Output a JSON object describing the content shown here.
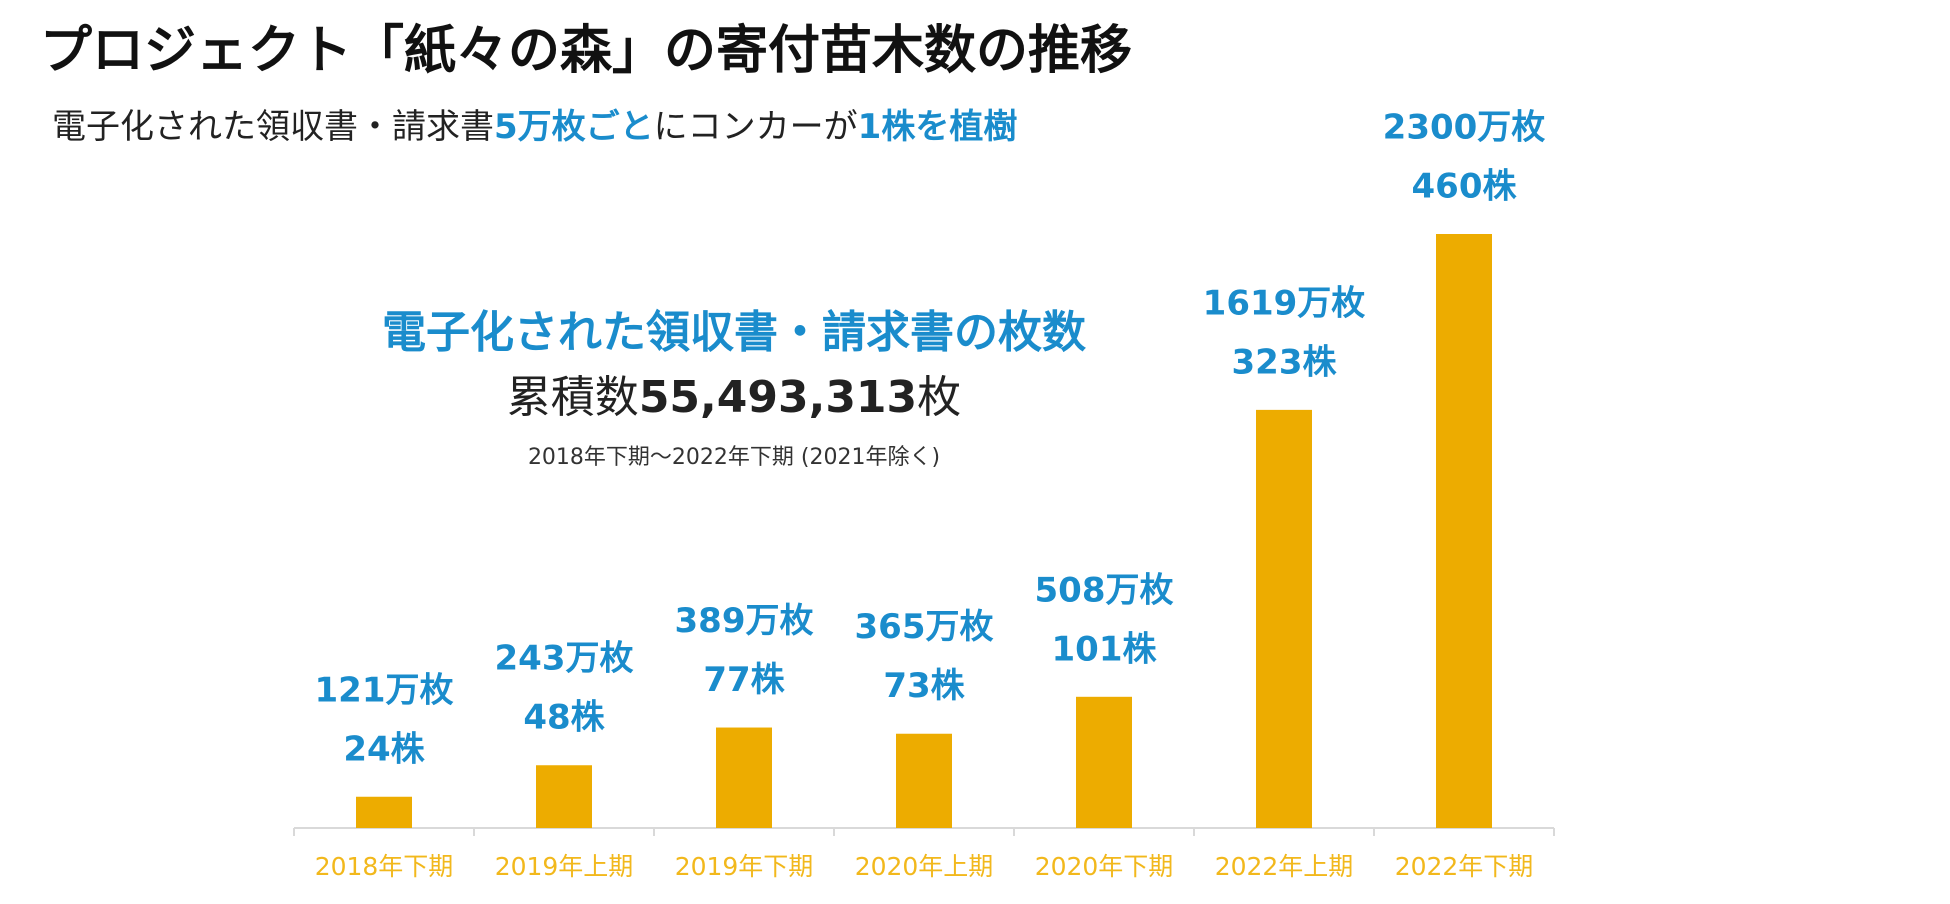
{
  "chart_data": {
    "type": "bar",
    "title": "プロジェクト「紙々の森」の寄付苗木数の推移",
    "subtitle_parts": [
      "電子化された領収書・請求書",
      "5万枚ごと",
      "にコンカーが",
      "1株を植樹"
    ],
    "annotation": {
      "heading": "電子化された領収書・請求書の枚数",
      "total_prefix": "累積数",
      "total": "55,493,313",
      "total_suffix": "枚",
      "note": "2018年下期～2022年下期 (2021年除く)"
    },
    "categories": [
      "2018年下期",
      "2019年上期",
      "2019年下期",
      "2020年上期",
      "2020年下期",
      "2022年上期",
      "2022年下期"
    ],
    "values": [
      121,
      243,
      389,
      365,
      508,
      1619,
      2300
    ],
    "value_labels": [
      "121万枚",
      "243万枚",
      "389万枚",
      "365万枚",
      "508万枚",
      "1619万枚",
      "2300万枚"
    ],
    "tree_labels": [
      "24株",
      "48株",
      "77株",
      "73株",
      "101株",
      "323株",
      "460株"
    ],
    "color": "#edac00"
  }
}
